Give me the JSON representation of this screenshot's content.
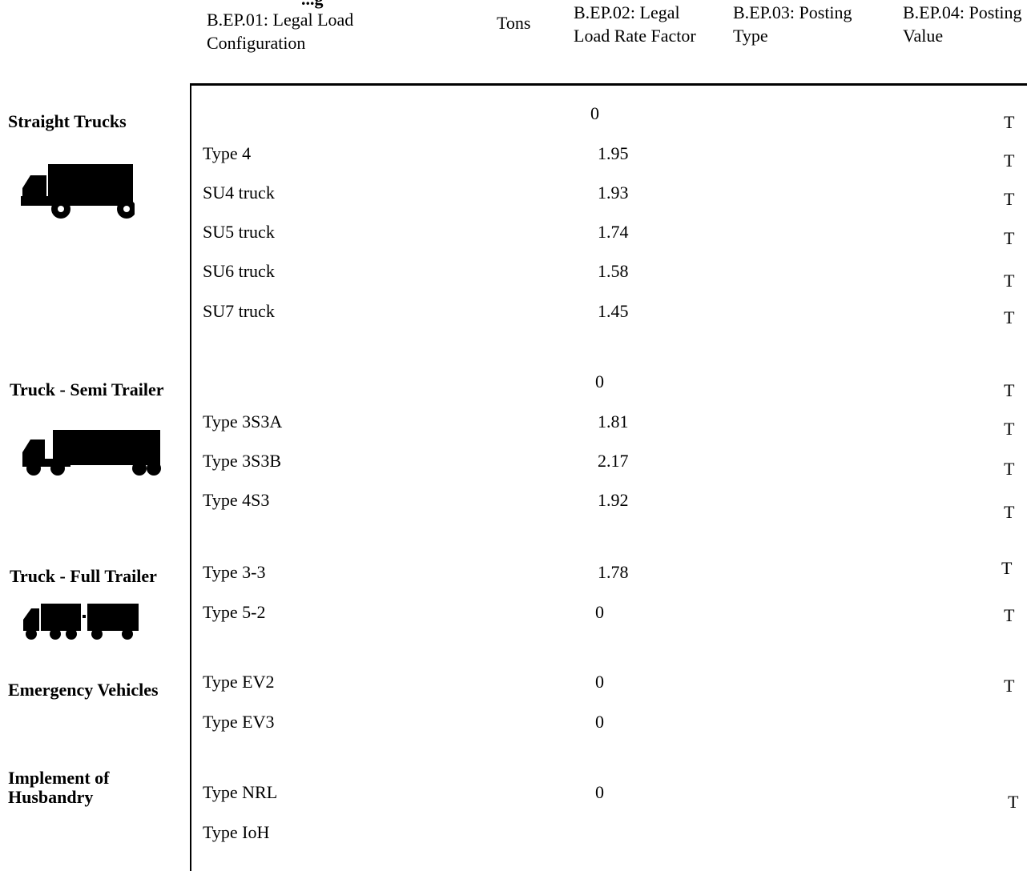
{
  "header": {
    "cut_title": "...g",
    "col_config": "B.EP.01: Legal Load Configuration",
    "col_tons": "Tons",
    "col_rate": "B.EP.02: Legal Load Rate Factor",
    "col_posting_type": "B.EP.03: Posting Type",
    "col_posting_value": "B.EP.04: Posting Value"
  },
  "icons": {
    "straight": "straight-truck-icon",
    "semi": "semi-trailer-truck-icon",
    "full": "full-trailer-truck-icon"
  },
  "categories": [
    {
      "label": "Straight Trucks"
    },
    {
      "label": "Truck - Semi Trailer"
    },
    {
      "label": "Truck - Full Trailer"
    },
    {
      "label": "Emergency Vehicles"
    },
    {
      "label": "Implement of Husbandry"
    }
  ],
  "rows": [
    {
      "config": "",
      "rate": "0",
      "mark": "T"
    },
    {
      "config": "Type 4",
      "rate": "1.95",
      "mark": "T"
    },
    {
      "config": "SU4 truck",
      "rate": "1.93",
      "mark": "T"
    },
    {
      "config": "SU5 truck",
      "rate": "1.74",
      "mark": "T"
    },
    {
      "config": "SU6 truck",
      "rate": "1.58",
      "mark": "T"
    },
    {
      "config": "SU7 truck",
      "rate": "1.45",
      "mark": "T"
    },
    {
      "config": "",
      "rate": "0",
      "mark": "T"
    },
    {
      "config": "Type 3S3A",
      "rate": "1.81",
      "mark": "T"
    },
    {
      "config": "Type 3S3B",
      "rate": "2.17",
      "mark": "T"
    },
    {
      "config": "Type 4S3",
      "rate": "1.92",
      "mark": "T"
    },
    {
      "config": "Type 3-3",
      "rate": "1.78",
      "mark": "T"
    },
    {
      "config": "Type 5-2",
      "rate": "0",
      "mark": "T"
    },
    {
      "config": "Type EV2",
      "rate": "0",
      "mark": "T"
    },
    {
      "config": "Type EV3",
      "rate": "0",
      "mark": ""
    },
    {
      "config": "Type NRL",
      "rate": "0",
      "mark": "T"
    },
    {
      "config": "Type IoH",
      "rate": "",
      "mark": ""
    }
  ]
}
